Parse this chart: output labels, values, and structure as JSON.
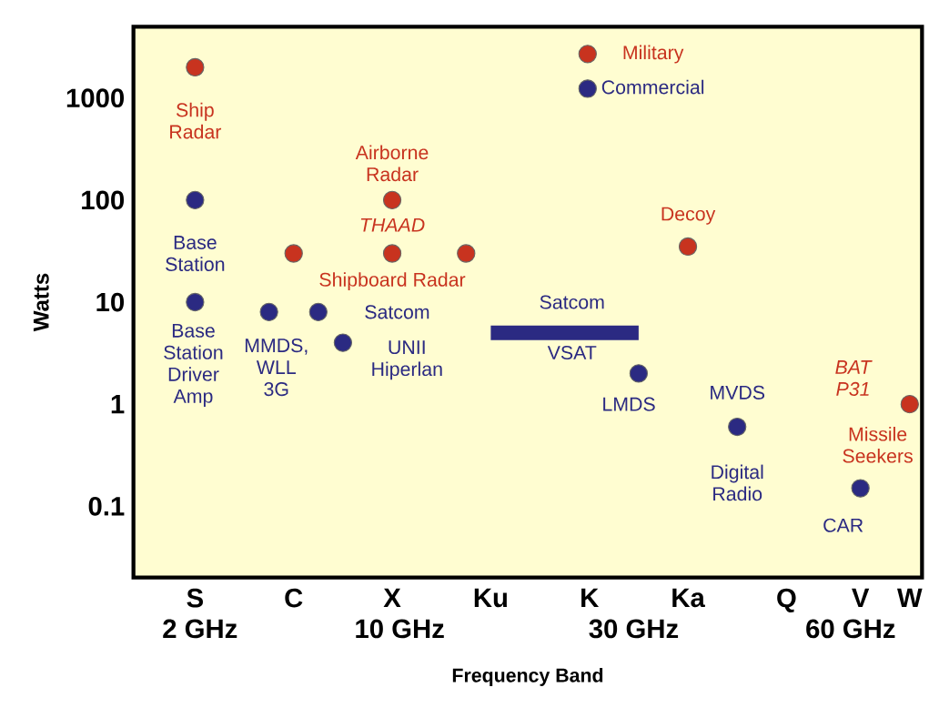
{
  "chart_data": {
    "type": "scatter",
    "xlabel": "Frequency Band",
    "ylabel": "Watts",
    "ylim": [
      0.02,
      5000
    ],
    "log": "y",
    "marker": "circle",
    "legend": "top",
    "categories": [
      null,
      null,
      "S",
      null,
      null,
      null,
      "C",
      null,
      null,
      null,
      "X",
      null,
      null,
      null,
      "Ku",
      null,
      null,
      null,
      "K",
      null,
      null,
      null,
      "Ka",
      null,
      null,
      null,
      "Q",
      null,
      null,
      "V",
      null,
      "W"
    ],
    "yticks": [
      0.1,
      1,
      10,
      100,
      1000
    ],
    "series": [
      {
        "name": "Military",
        "color": "#c8331f",
        "values": [
          null,
          null,
          2000,
          null,
          null,
          null,
          30,
          null,
          null,
          null,
          100,
          null,
          null,
          30,
          null,
          null,
          null,
          null,
          null,
          null,
          null,
          null,
          35,
          null,
          null,
          null,
          null,
          null,
          null,
          null,
          null,
          1
        ]
      },
      {
        "name": "Commercial",
        "color": "#2b2a82",
        "values": [
          null,
          null,
          100,
          null,
          null,
          8,
          null,
          8,
          4,
          null,
          null,
          null,
          null,
          null,
          null,
          null,
          null,
          null,
          null,
          null,
          2,
          null,
          null,
          null,
          0.6,
          null,
          null,
          null,
          null,
          0.15,
          null,
          null
        ]
      },
      {
        "color": "#c8331f",
        "values": [
          null,
          null,
          null,
          null,
          null,
          null,
          null,
          null,
          null,
          null,
          30,
          null,
          null,
          null,
          null,
          null,
          null,
          null,
          null,
          null,
          null,
          null,
          null,
          null,
          null,
          null,
          null,
          null,
          null,
          null,
          null,
          null
        ]
      },
      {
        "color": "#2b2a82",
        "values": [
          null,
          null,
          10,
          null,
          null,
          null,
          null,
          null,
          null,
          null,
          null,
          null,
          null,
          null,
          null,
          null,
          null,
          null,
          null,
          null,
          null,
          null,
          null,
          null,
          null,
          null,
          null,
          null,
          null,
          null,
          null,
          null
        ]
      },
      {
        "type": "line",
        "marker": "none",
        "color": "#2b2a82",
        "values": [
          null,
          null,
          null,
          null,
          null,
          null,
          null,
          null,
          null,
          null,
          null,
          null,
          null,
          null,
          5,
          5,
          5,
          5,
          5,
          5,
          5,
          null,
          null,
          null,
          null,
          null,
          null,
          null,
          null,
          null,
          null,
          null
        ]
      }
    ],
    "annotations": [
      "Ship Radar",
      "Airborne Radar",
      "THAAD",
      "Shipboard Radar",
      "Decoy",
      "BAT P31",
      "Missile Seekers",
      "Base Station",
      "Base Station Driver Amp",
      "MMDS, WLL 3G",
      "Satcom",
      "UNII Hiperlan",
      "Satcom",
      "VSAT",
      "LMDS",
      "MVDS",
      "Digital Radio",
      "CAR",
      "2 GHz",
      "10 GHz",
      "30 GHz",
      "60 GHz"
    ]
  }
}
